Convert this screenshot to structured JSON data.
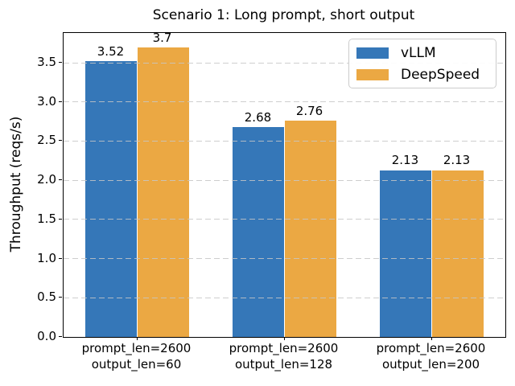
{
  "chart_data": {
    "type": "bar",
    "title": "Scenario 1: Long prompt, short output",
    "xlabel": "",
    "ylabel": "Throughput (reqs/s)",
    "categories": [
      "prompt_len=2600\noutput_len=60",
      "prompt_len=2600\noutput_len=128",
      "prompt_len=2600\noutput_len=200"
    ],
    "series": [
      {
        "name": "vLLM",
        "color": "#3577b8",
        "values": [
          3.52,
          2.68,
          2.13
        ]
      },
      {
        "name": "DeepSpeed",
        "color": "#eba843",
        "values": [
          3.7,
          2.76,
          2.13
        ]
      }
    ],
    "bar_value_labels": [
      "3.52",
      "3.7",
      "2.68",
      "2.76",
      "2.13",
      "2.13"
    ],
    "ylim": [
      0,
      3.88
    ],
    "yticks": [
      0.0,
      0.5,
      1.0,
      1.5,
      2.0,
      2.5,
      3.0,
      3.5
    ],
    "ytick_labels": [
      "0.0",
      "0.5",
      "1.0",
      "1.5",
      "2.0",
      "2.5",
      "3.0",
      "3.5"
    ],
    "grid": "horizontal-dashed-above-bars",
    "legend_position": "upper right",
    "legend_entries": [
      "vLLM",
      "DeepSpeed"
    ]
  }
}
